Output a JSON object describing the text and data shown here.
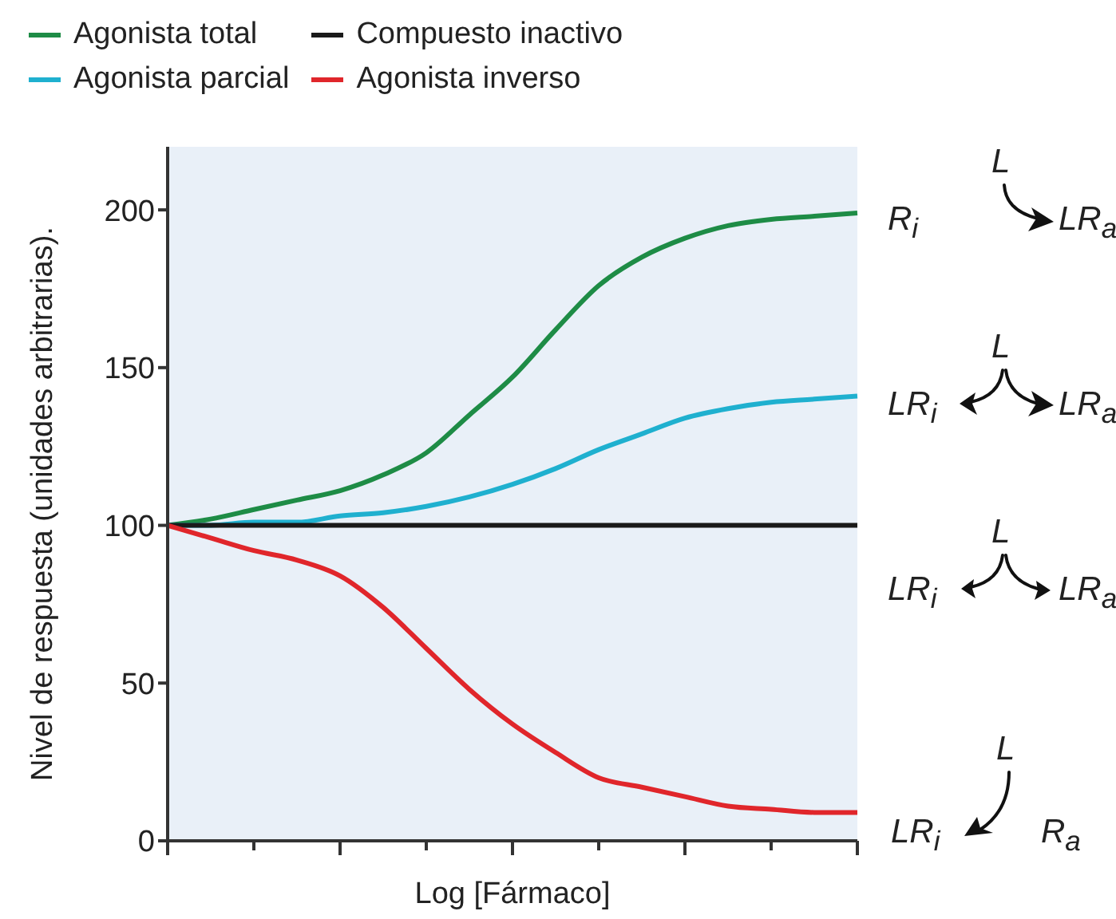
{
  "chart_data": {
    "type": "line",
    "xlabel": "Log [Fármaco]",
    "ylabel": "Nivel de respuesta (unidades arbitrarias).",
    "categories": [
      null,
      null,
      null,
      null,
      null,
      null,
      null,
      null,
      null,
      null,
      null,
      null,
      null,
      null,
      null,
      null,
      null
    ],
    "series": [
      {
        "name": "Agonista total",
        "color": "#1e8c46",
        "values": [
          100,
          102,
          105,
          108,
          111,
          116,
          123,
          135,
          147,
          162,
          176,
          185,
          191,
          195,
          197,
          198,
          199
        ]
      },
      {
        "name": "Agonista parcial",
        "color": "#1fb0cf",
        "values": [
          100,
          100,
          101,
          101,
          103,
          104,
          106,
          109,
          113,
          118,
          124,
          129,
          134,
          137,
          139,
          140,
          141
        ]
      },
      {
        "name": "Compuesto inactivo",
        "color": "#1a1a1a",
        "values": [
          100,
          100,
          100,
          100,
          100,
          100,
          100,
          100,
          100,
          100,
          100,
          100,
          100,
          100,
          100,
          100,
          100
        ]
      },
      {
        "name": "Agonista inverso",
        "color": "#e0262b",
        "values": [
          100,
          96,
          92,
          89,
          84,
          74,
          61,
          48,
          37,
          28,
          20,
          17,
          14,
          11,
          10,
          9,
          9
        ]
      }
    ],
    "ylim": [
      0,
      220
    ],
    "yticks": [
      0,
      50,
      100,
      150,
      200
    ],
    "tick_labels": "y",
    "legend": "top left",
    "annotations": [
      "L",
      "R$_{i}$",
      "LR$_{a}$",
      "L",
      "LR$_{i}$",
      "LR$_{a}$",
      "L",
      "LR$_{i}$",
      "LR$_{a}$",
      "L",
      "LR$_{i}$",
      "R$_{a}$"
    ]
  }
}
